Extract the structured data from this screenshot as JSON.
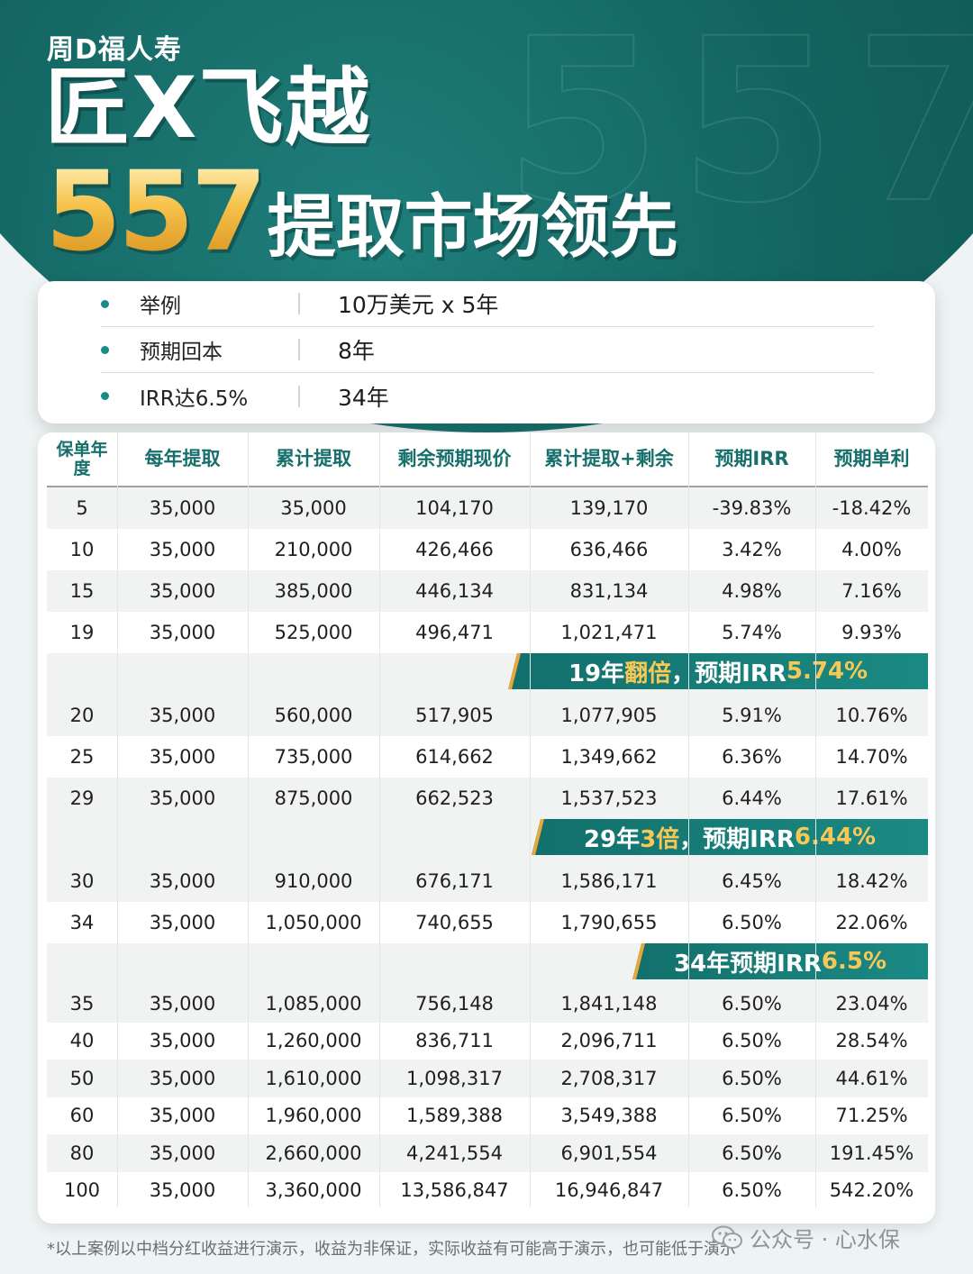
{
  "header": {
    "brand": "周D福人寿",
    "title_line1": "匠X飞越",
    "title_number": "557",
    "title_line2": "提取市场领先",
    "background_number": "557"
  },
  "summary": [
    {
      "label": "举例",
      "value": "10万美元 x 5年"
    },
    {
      "label": "预期回本",
      "value": "8年"
    },
    {
      "label": "IRR达6.5%",
      "value": "34年"
    }
  ],
  "table": {
    "headers": [
      "保单年度",
      "每年提取",
      "累计提取",
      "剩余预期现价",
      "累计提取+剩余",
      "预期IRR",
      "预期单利"
    ],
    "rows_a": [
      [
        "5",
        "35,000",
        "35,000",
        "104,170",
        "139,170",
        "-39.83%",
        "-18.42%"
      ],
      [
        "10",
        "35,000",
        "210,000",
        "426,466",
        "636,466",
        "3.42%",
        "4.00%"
      ],
      [
        "15",
        "35,000",
        "385,000",
        "446,134",
        "831,134",
        "4.98%",
        "7.16%"
      ],
      [
        "19",
        "35,000",
        "525,000",
        "496,471",
        "1,021,471",
        "5.74%",
        "9.93%"
      ]
    ],
    "banner_1": {
      "prefix": "19年",
      "highlight1": "翻倍",
      "middle": "，预期IRR",
      "highlight2": "5.74%"
    },
    "rows_b": [
      [
        "20",
        "35,000",
        "560,000",
        "517,905",
        "1,077,905",
        "5.91%",
        "10.76%"
      ],
      [
        "25",
        "35,000",
        "735,000",
        "614,662",
        "1,349,662",
        "6.36%",
        "14.70%"
      ],
      [
        "29",
        "35,000",
        "875,000",
        "662,523",
        "1,537,523",
        "6.44%",
        "17.61%"
      ]
    ],
    "banner_2": {
      "prefix": "29年",
      "highlight1": "3倍",
      "middle": "，预期IRR",
      "highlight2": "6.44%"
    },
    "rows_c": [
      [
        "30",
        "35,000",
        "910,000",
        "676,171",
        "1,586,171",
        "6.45%",
        "18.42%"
      ],
      [
        "34",
        "35,000",
        "1,050,000",
        "740,655",
        "1,790,655",
        "6.50%",
        "22.06%"
      ]
    ],
    "banner_3": {
      "prefix": "34年预期IRR",
      "highlight2": "6.5%"
    },
    "rows_d": [
      [
        "35",
        "35,000",
        "1,085,000",
        "756,148",
        "1,841,148",
        "6.50%",
        "23.04%"
      ],
      [
        "40",
        "35,000",
        "1,260,000",
        "836,711",
        "2,096,711",
        "6.50%",
        "28.54%"
      ],
      [
        "50",
        "35,000",
        "1,610,000",
        "1,098,317",
        "2,708,317",
        "6.50%",
        "44.61%"
      ],
      [
        "60",
        "35,000",
        "1,960,000",
        "1,589,388",
        "3,549,388",
        "6.50%",
        "71.25%"
      ],
      [
        "80",
        "35,000",
        "2,660,000",
        "4,241,554",
        "6,901,554",
        "6.50%",
        "191.45%"
      ],
      [
        "100",
        "35,000",
        "3,360,000",
        "13,586,847",
        "16,946,847",
        "6.50%",
        "542.20%"
      ]
    ]
  },
  "footnote": "*以上案例以中档分红收益进行演示，收益为非保证，实际收益有可能高于演示，也可能低于演示",
  "watermark": {
    "icon": "wechat-icon",
    "text": "公众号 · 心水保"
  },
  "colors": {
    "teal": "#136460",
    "gold": "#f7c855",
    "header_text": "#166f6b"
  }
}
